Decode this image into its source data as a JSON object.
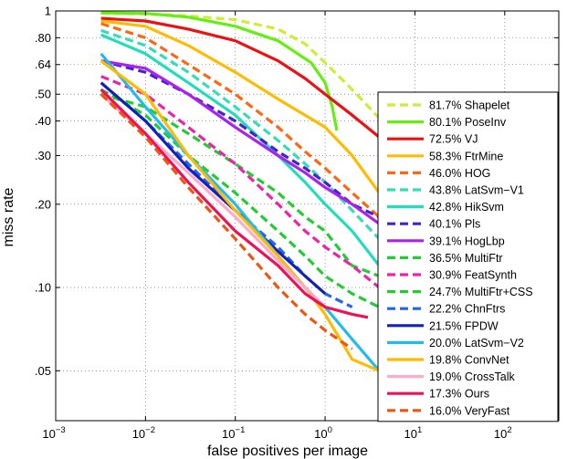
{
  "chart_data": {
    "type": "line",
    "title": "",
    "xlabel": "false positives per image",
    "ylabel": "miss rate",
    "xscale": "log",
    "yscale": "log",
    "xlim": [
      0.001,
      400
    ],
    "ylim": [
      0.033,
      1
    ],
    "grid": true,
    "grid_style": "dotted",
    "legend_position": "right",
    "x_ticks": [
      {
        "v": 0.001,
        "base": "10",
        "exp": "−3"
      },
      {
        "v": 0.01,
        "base": "10",
        "exp": "−2"
      },
      {
        "v": 0.1,
        "base": "10",
        "exp": "−1"
      },
      {
        "v": 1,
        "base": "10",
        "exp": "0"
      },
      {
        "v": 10,
        "base": "10",
        "exp": "1"
      },
      {
        "v": 100,
        "base": "10",
        "exp": "2"
      }
    ],
    "y_ticks": [
      {
        "v": 1,
        "label": "1"
      },
      {
        "v": 0.8,
        "label": ".80"
      },
      {
        "v": 0.64,
        "label": ".64"
      },
      {
        "v": 0.5,
        "label": ".50"
      },
      {
        "v": 0.4,
        "label": ".40"
      },
      {
        "v": 0.3,
        "label": ".30"
      },
      {
        "v": 0.2,
        "label": ".20"
      },
      {
        "v": 0.1,
        "label": ".10"
      },
      {
        "v": 0.05,
        "label": ".05"
      }
    ],
    "series": [
      {
        "label": "81.7% Shapelet",
        "color": "#ccee33",
        "dash": true,
        "points": [
          [
            0.0032,
            0.98
          ],
          [
            0.01,
            0.975
          ],
          [
            0.03,
            0.96
          ],
          [
            0.1,
            0.93
          ],
          [
            0.3,
            0.86
          ],
          [
            0.6,
            0.76
          ],
          [
            1,
            0.65
          ],
          [
            2,
            0.52
          ],
          [
            4,
            0.41
          ]
        ]
      },
      {
        "label": "80.1% PoseInv",
        "color": "#66ee11",
        "dash": false,
        "points": [
          [
            0.0032,
            0.985
          ],
          [
            0.01,
            0.98
          ],
          [
            0.03,
            0.95
          ],
          [
            0.1,
            0.88
          ],
          [
            0.3,
            0.78
          ],
          [
            0.7,
            0.65
          ],
          [
            1.0,
            0.55
          ],
          [
            1.2,
            0.45
          ],
          [
            1.35,
            0.37
          ]
        ]
      },
      {
        "label": "72.5% VJ",
        "color": "#ee1111",
        "dash": false,
        "points": [
          [
            0.0032,
            0.94
          ],
          [
            0.01,
            0.92
          ],
          [
            0.03,
            0.86
          ],
          [
            0.1,
            0.78
          ],
          [
            0.3,
            0.66
          ],
          [
            0.6,
            0.57
          ],
          [
            1,
            0.5
          ],
          [
            2,
            0.42
          ],
          [
            4,
            0.35
          ]
        ]
      },
      {
        "label": "58.3% FtrMine",
        "color": "#ffbb00",
        "dash": false,
        "points": [
          [
            0.0032,
            0.92
          ],
          [
            0.01,
            0.88
          ],
          [
            0.03,
            0.75
          ],
          [
            0.1,
            0.6
          ],
          [
            0.3,
            0.48
          ],
          [
            0.6,
            0.42
          ],
          [
            1,
            0.38
          ],
          [
            2,
            0.3
          ],
          [
            4,
            0.22
          ]
        ]
      },
      {
        "label": "46.0% HOG",
        "color": "#ff6611",
        "dash": true,
        "points": [
          [
            0.0032,
            0.9
          ],
          [
            0.01,
            0.8
          ],
          [
            0.03,
            0.64
          ],
          [
            0.1,
            0.5
          ],
          [
            0.3,
            0.38
          ],
          [
            0.6,
            0.31
          ],
          [
            1,
            0.27
          ],
          [
            2,
            0.22
          ],
          [
            4,
            0.18
          ]
        ]
      },
      {
        "label": "43.8% LatSvm−V1",
        "color": "#33ddbb",
        "dash": true,
        "points": [
          [
            0.0032,
            0.85
          ],
          [
            0.01,
            0.75
          ],
          [
            0.03,
            0.6
          ],
          [
            0.1,
            0.45
          ],
          [
            0.3,
            0.34
          ],
          [
            0.6,
            0.28
          ],
          [
            1,
            0.24
          ],
          [
            2,
            0.19
          ],
          [
            4,
            0.15
          ]
        ]
      },
      {
        "label": "42.8% HikSvm",
        "color": "#22ddbb",
        "dash": false,
        "points": [
          [
            0.0032,
            0.82
          ],
          [
            0.01,
            0.7
          ],
          [
            0.03,
            0.55
          ],
          [
            0.1,
            0.42
          ],
          [
            0.3,
            0.3
          ],
          [
            0.6,
            0.24
          ],
          [
            1,
            0.2
          ],
          [
            2,
            0.16
          ],
          [
            4,
            0.12
          ]
        ]
      },
      {
        "label": "40.1% Pls",
        "color": "#4422cc",
        "dash": true,
        "points": [
          [
            0.0032,
            0.66
          ],
          [
            0.01,
            0.6
          ],
          [
            0.03,
            0.5
          ],
          [
            0.1,
            0.4
          ],
          [
            0.3,
            0.31
          ],
          [
            0.6,
            0.27
          ],
          [
            1,
            0.24
          ],
          [
            2,
            0.2
          ],
          [
            4,
            0.18
          ]
        ]
      },
      {
        "label": "39.1% HogLbp",
        "color": "#aa22ee",
        "dash": false,
        "points": [
          [
            0.0032,
            0.66
          ],
          [
            0.01,
            0.62
          ],
          [
            0.03,
            0.5
          ],
          [
            0.1,
            0.38
          ],
          [
            0.3,
            0.3
          ],
          [
            0.6,
            0.26
          ],
          [
            1,
            0.23
          ],
          [
            2,
            0.2
          ],
          [
            4,
            0.17
          ]
        ]
      },
      {
        "label": "36.5% MultiFtr",
        "color": "#22cc33",
        "dash": true,
        "points": [
          [
            0.0032,
            0.5
          ],
          [
            0.01,
            0.45
          ],
          [
            0.03,
            0.36
          ],
          [
            0.1,
            0.28
          ],
          [
            0.3,
            0.22
          ],
          [
            0.6,
            0.18
          ],
          [
            1,
            0.16
          ],
          [
            2,
            0.12
          ],
          [
            4,
            0.11
          ]
        ]
      },
      {
        "label": "30.9% FeatSynth",
        "color": "#ee22aa",
        "dash": true,
        "points": [
          [
            0.0032,
            0.58
          ],
          [
            0.01,
            0.5
          ],
          [
            0.03,
            0.38
          ],
          [
            0.1,
            0.28
          ],
          [
            0.3,
            0.2
          ],
          [
            0.6,
            0.16
          ],
          [
            1,
            0.14
          ],
          [
            2,
            0.12
          ],
          [
            4,
            0.1
          ]
        ]
      },
      {
        "label": "24.7% MultiFtr+CSS",
        "color": "#22cc33",
        "dash": true,
        "points": [
          [
            0.0032,
            0.52
          ],
          [
            0.01,
            0.42
          ],
          [
            0.03,
            0.3
          ],
          [
            0.1,
            0.22
          ],
          [
            0.3,
            0.16
          ],
          [
            0.6,
            0.13
          ],
          [
            1,
            0.11
          ],
          [
            2,
            0.095
          ],
          [
            4,
            0.085
          ]
        ]
      },
      {
        "label": "22.2% ChnFtrs",
        "color": "#2266ee",
        "dash": true,
        "points": [
          [
            0.0032,
            0.55
          ],
          [
            0.01,
            0.4
          ],
          [
            0.03,
            0.28
          ],
          [
            0.1,
            0.19
          ],
          [
            0.3,
            0.14
          ],
          [
            0.6,
            0.11
          ],
          [
            1,
            0.095
          ],
          [
            2,
            0.085
          ]
        ]
      },
      {
        "label": "21.5% FPDW",
        "color": "#1122bb",
        "dash": false,
        "points": [
          [
            0.0032,
            0.55
          ],
          [
            0.01,
            0.4
          ],
          [
            0.03,
            0.27
          ],
          [
            0.1,
            0.19
          ],
          [
            0.3,
            0.135
          ],
          [
            0.6,
            0.11
          ],
          [
            1,
            0.095
          ]
        ]
      },
      {
        "label": "20.0% LatSvm−V2",
        "color": "#22bbee",
        "dash": false,
        "points": [
          [
            0.0032,
            0.7
          ],
          [
            0.01,
            0.45
          ],
          [
            0.03,
            0.3
          ],
          [
            0.1,
            0.2
          ],
          [
            0.3,
            0.13
          ],
          [
            0.6,
            0.1
          ],
          [
            1,
            0.085
          ],
          [
            2,
            0.065
          ],
          [
            4,
            0.05
          ]
        ]
      },
      {
        "label": "19.8% ConvNet",
        "color": "#ffbb00",
        "dash": false,
        "points": [
          [
            0.0032,
            0.66
          ],
          [
            0.01,
            0.5
          ],
          [
            0.03,
            0.3
          ],
          [
            0.1,
            0.19
          ],
          [
            0.3,
            0.13
          ],
          [
            0.6,
            0.1
          ],
          [
            1,
            0.08
          ],
          [
            2,
            0.055
          ],
          [
            4,
            0.05
          ]
        ]
      },
      {
        "label": "19.0% CrossTalk",
        "color": "#ffaacc",
        "dash": false,
        "points": [
          [
            0.0032,
            0.5
          ],
          [
            0.01,
            0.36
          ],
          [
            0.03,
            0.26
          ],
          [
            0.1,
            0.18
          ],
          [
            0.3,
            0.125
          ],
          [
            0.6,
            0.1
          ],
          [
            1,
            0.085
          ]
        ]
      },
      {
        "label": "17.3% Ours",
        "color": "#ee1155",
        "dash": false,
        "points": [
          [
            0.0032,
            0.52
          ],
          [
            0.01,
            0.36
          ],
          [
            0.03,
            0.24
          ],
          [
            0.1,
            0.16
          ],
          [
            0.3,
            0.12
          ],
          [
            0.6,
            0.095
          ],
          [
            1,
            0.085
          ],
          [
            2,
            0.08
          ],
          [
            3,
            0.078
          ]
        ]
      },
      {
        "label": "16.0% VeryFast",
        "color": "#ee5511",
        "dash": true,
        "points": [
          [
            0.0032,
            0.5
          ],
          [
            0.01,
            0.35
          ],
          [
            0.03,
            0.23
          ],
          [
            0.1,
            0.15
          ],
          [
            0.3,
            0.1
          ],
          [
            0.6,
            0.08
          ],
          [
            1,
            0.07
          ],
          [
            2,
            0.06
          ]
        ]
      }
    ]
  }
}
